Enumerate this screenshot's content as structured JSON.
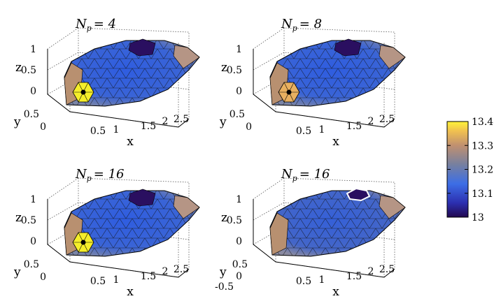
{
  "panels": [
    {
      "title_var": "N",
      "title_sub": "p",
      "title_value": "= 4",
      "x_ticks": [
        "0.5",
        "1",
        "1.5",
        "2",
        "2.5"
      ],
      "y_ticks": [
        "0",
        "0.5"
      ],
      "z_ticks": [
        "0",
        "0.5",
        "1"
      ],
      "x_label": "x",
      "y_label": "y",
      "z_label": "z",
      "hot_patch": "yellow",
      "outlined_patch": false
    },
    {
      "title_var": "N",
      "title_sub": "p",
      "title_value": "= 8",
      "x_ticks": [
        "0.5",
        "1",
        "1.5",
        "2",
        "2.5"
      ],
      "y_ticks": [
        "0",
        "0.5"
      ],
      "z_ticks": [
        "0",
        "0.5",
        "1"
      ],
      "x_label": "x",
      "y_label": "y",
      "z_label": "z",
      "hot_patch": "orange",
      "outlined_patch": false
    },
    {
      "title_var": "N",
      "title_sub": "p",
      "title_value": "= 16",
      "x_ticks": [
        "0.5",
        "1",
        "1.5",
        "2",
        "2.5"
      ],
      "y_ticks": [
        "0",
        "0.5"
      ],
      "z_ticks": [
        "0",
        "0.5",
        "1"
      ],
      "x_label": "x",
      "y_label": "y",
      "z_label": "z",
      "hot_patch": "yellow",
      "outlined_patch": false
    },
    {
      "title_var": "N",
      "title_sub": "p",
      "title_value": "= 16",
      "x_ticks": [
        "0.5",
        "1",
        "1.5",
        "2",
        "2.5"
      ],
      "y_ticks": [
        "-0.5",
        "0",
        "0.5"
      ],
      "z_ticks": [
        "0",
        "0.5",
        "1"
      ],
      "x_label": "x",
      "y_label": "y",
      "z_label": "z",
      "hot_patch": "none",
      "outlined_patch": true
    }
  ],
  "colorbar": {
    "ticks": [
      "13.4",
      "13.3",
      "13.2",
      "13.1",
      "13"
    ],
    "min": 13,
    "max": 13.4,
    "colors": [
      "#2a0a5e",
      "#2f3fc4",
      "#3a6fe0",
      "#6d7fa8",
      "#a59080",
      "#e8a85c",
      "#fff23a"
    ]
  }
}
